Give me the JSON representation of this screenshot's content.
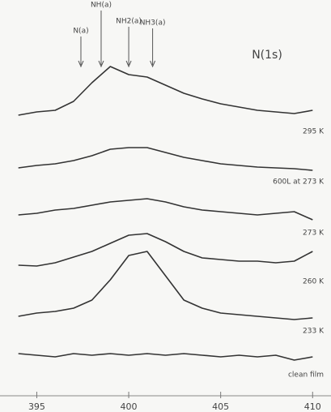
{
  "chart_data": {
    "type": "line",
    "title": "N(1s)",
    "annotations": [
      {
        "text": "N(a)",
        "x": 397.4
      },
      {
        "text": "NH(a)",
        "x": 398.5
      },
      {
        "text": "NH2(a)",
        "x": 400.0
      },
      {
        "text": "NH3(a)",
        "x": 401.3
      }
    ],
    "x": [
      394,
      395,
      396,
      397,
      398,
      399,
      400,
      401,
      402,
      403,
      404,
      405,
      406,
      407,
      408,
      409,
      410
    ],
    "series": [
      {
        "name": "295 K",
        "color": "#333333",
        "values": [
          8,
          12,
          14,
          25,
          48,
          68,
          58,
          55,
          45,
          35,
          28,
          22,
          18,
          14,
          12,
          10,
          14
        ]
      },
      {
        "name": "600L at 273 K",
        "color": "#333333",
        "values": [
          5,
          8,
          10,
          14,
          20,
          28,
          30,
          30,
          24,
          18,
          14,
          10,
          8,
          6,
          5,
          4,
          2
        ]
      },
      {
        "name": "273 K",
        "color": "#333333",
        "values": [
          10,
          12,
          16,
          18,
          22,
          26,
          28,
          30,
          26,
          20,
          16,
          14,
          12,
          10,
          12,
          14,
          4
        ]
      },
      {
        "name": "260 K",
        "color": "#333333",
        "values": [
          5,
          4,
          8,
          15,
          22,
          32,
          42,
          44,
          34,
          22,
          14,
          12,
          10,
          10,
          8,
          10,
          22
        ]
      },
      {
        "name": "233 K",
        "color": "#333333",
        "values": [
          10,
          14,
          16,
          20,
          30,
          55,
          85,
          90,
          60,
          30,
          20,
          14,
          12,
          10,
          8,
          6,
          8
        ]
      },
      {
        "name": "clean film",
        "color": "#333333",
        "values": [
          12,
          10,
          8,
          12,
          10,
          12,
          10,
          12,
          10,
          12,
          10,
          8,
          10,
          8,
          10,
          4,
          8
        ]
      }
    ],
    "xlim": [
      393,
      411
    ],
    "xticks": [
      395,
      400,
      405,
      410
    ]
  }
}
